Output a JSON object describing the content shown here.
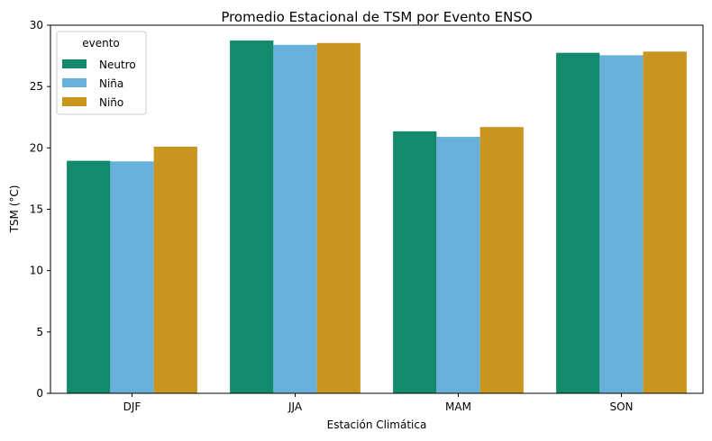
{
  "chart_data": {
    "type": "bar",
    "title": "Promedio Estacional de TSM por Evento ENSO",
    "xlabel": "Estación Climática",
    "ylabel": "TSM (°C)",
    "categories": [
      "DJF",
      "JJA",
      "MAM",
      "SON"
    ],
    "series": [
      {
        "name": "Neutro",
        "color": "#138a6b",
        "values": [
          18.95,
          28.75,
          21.35,
          27.75
        ]
      },
      {
        "name": "Niña",
        "color": "#66b0d9",
        "values": [
          18.9,
          28.4,
          20.9,
          27.55
        ]
      },
      {
        "name": "Niño",
        "color": "#c9951f",
        "values": [
          20.1,
          28.55,
          21.7,
          27.85
        ]
      }
    ],
    "ylim": [
      0,
      30
    ],
    "yticks": [
      0,
      5,
      10,
      15,
      20,
      25,
      30
    ],
    "legend": {
      "title": "evento",
      "position": "top-left"
    },
    "grid": false
  }
}
